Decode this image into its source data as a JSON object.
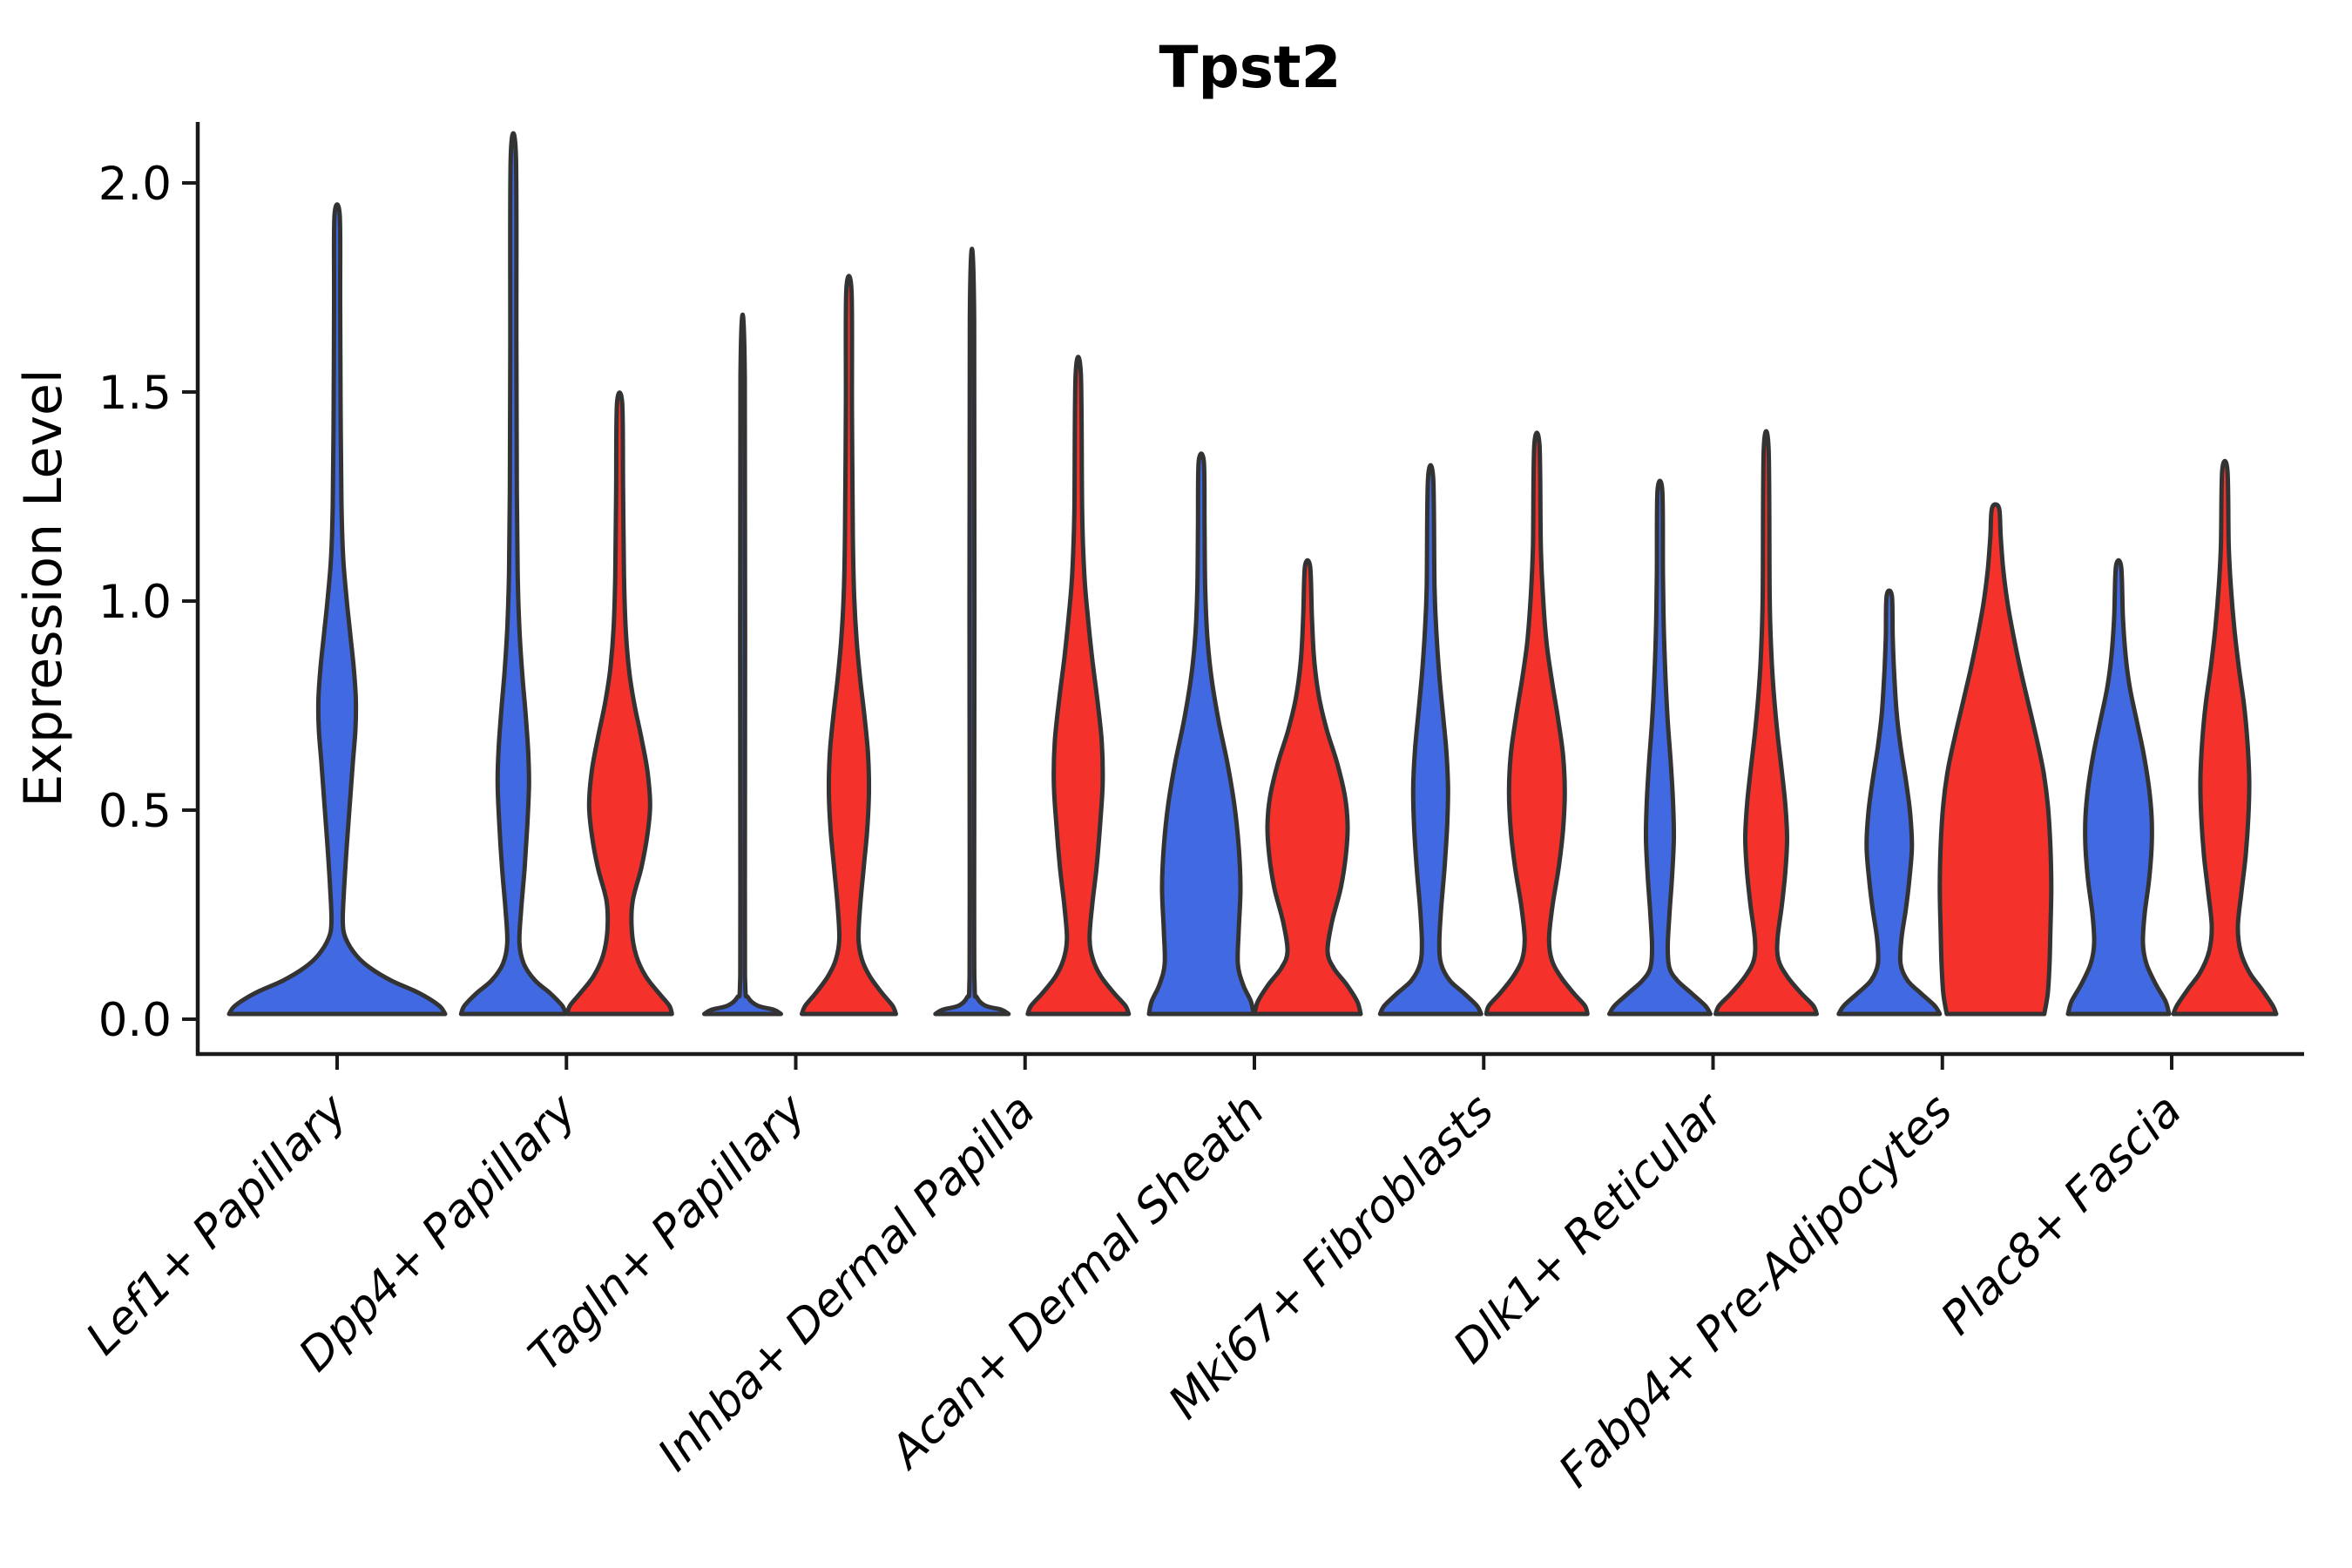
{
  "chart_data": {
    "type": "violin",
    "title": "Tpst2",
    "ylabel": "Expression Level",
    "xlabel": "",
    "grid": false,
    "legend": "none",
    "ylim": [
      -0.09,
      2.15
    ],
    "yticks": [
      {
        "label": "0.0",
        "value": 0.0
      },
      {
        "label": "0.5",
        "value": 0.5
      },
      {
        "label": "1.0",
        "value": 1.0
      },
      {
        "label": "1.5",
        "value": 1.5
      },
      {
        "label": "2.0",
        "value": 2.0
      }
    ],
    "categories": [
      "Lef1+ Papillary",
      "Dpp4+ Papillary",
      "Tagln+ Papillary",
      "Inhba+ Dermal Papilla",
      "Acan+ Dermal Sheath",
      "Mki67+ Fibroblasts",
      "Dlk1+ Reticular",
      "Fabp4+ Pre-Adipocytes",
      "Plac8+ Fascia"
    ],
    "colors": {
      "blue": "#4169E1",
      "red": "#F5312B",
      "outline": "#333333",
      "axis": "#1a1a1a",
      "text": "#000000"
    },
    "violins": [
      {
        "category": "Lef1+ Papillary",
        "series": "blue",
        "position": "center",
        "max_expression": 1.91,
        "profile": [
          [
            0,
            124
          ],
          [
            0.02,
            117
          ],
          [
            0.05,
            94
          ],
          [
            0.08,
            62
          ],
          [
            0.11,
            38
          ],
          [
            0.14,
            22
          ],
          [
            0.18,
            10
          ],
          [
            0.22,
            6.5
          ],
          [
            0.3,
            8
          ],
          [
            0.4,
            11
          ],
          [
            0.5,
            14.5
          ],
          [
            0.6,
            18
          ],
          [
            0.68,
            21
          ],
          [
            0.75,
            21.5
          ],
          [
            0.83,
            19
          ],
          [
            0.91,
            15
          ],
          [
            0.99,
            11
          ],
          [
            1.09,
            7
          ],
          [
            1.22,
            5
          ],
          [
            1.45,
            4
          ],
          [
            1.7,
            3.5
          ],
          [
            1.91,
            3
          ]
        ]
      },
      {
        "category": "Dpp4+ Papillary",
        "series": "blue",
        "position": "left",
        "max_expression": 2.05,
        "profile": [
          [
            0,
            60
          ],
          [
            0.02,
            56
          ],
          [
            0.05,
            42
          ],
          [
            0.08,
            25
          ],
          [
            0.12,
            12
          ],
          [
            0.17,
            7
          ],
          [
            0.25,
            9
          ],
          [
            0.35,
            13
          ],
          [
            0.45,
            16
          ],
          [
            0.55,
            18
          ],
          [
            0.63,
            17
          ],
          [
            0.72,
            14
          ],
          [
            0.82,
            10
          ],
          [
            0.92,
            7
          ],
          [
            1.05,
            5
          ],
          [
            1.25,
            4
          ],
          [
            1.6,
            3.5
          ],
          [
            2.05,
            3
          ]
        ]
      },
      {
        "category": "Dpp4+ Papillary",
        "series": "red",
        "position": "right",
        "max_expression": 1.46,
        "profile": [
          [
            0,
            60
          ],
          [
            0.02,
            57
          ],
          [
            0.05,
            45
          ],
          [
            0.09,
            30
          ],
          [
            0.14,
            19
          ],
          [
            0.2,
            14
          ],
          [
            0.27,
            15
          ],
          [
            0.35,
            25
          ],
          [
            0.43,
            32
          ],
          [
            0.5,
            35
          ],
          [
            0.58,
            32
          ],
          [
            0.66,
            25
          ],
          [
            0.74,
            17
          ],
          [
            0.82,
            11
          ],
          [
            0.92,
            7
          ],
          [
            1.05,
            5
          ],
          [
            1.25,
            4
          ],
          [
            1.46,
            3
          ]
        ]
      },
      {
        "category": "Tagln+ Papillary",
        "series": "blue",
        "position": "left",
        "max_expression": 1.52,
        "profile": [
          [
            0,
            44
          ],
          [
            0.01,
            36
          ],
          [
            0.02,
            17
          ],
          [
            0.04,
            6
          ],
          [
            0.07,
            3
          ],
          [
            0.3,
            2.6
          ],
          [
            1.52,
            2.5
          ]
        ]
      },
      {
        "category": "Tagln+ Papillary",
        "series": "red",
        "position": "right",
        "max_expression": 1.73,
        "profile": [
          [
            0,
            54
          ],
          [
            0.02,
            50
          ],
          [
            0.05,
            38
          ],
          [
            0.09,
            24
          ],
          [
            0.13,
            15
          ],
          [
            0.18,
            11
          ],
          [
            0.26,
            13
          ],
          [
            0.35,
            17
          ],
          [
            0.44,
            21
          ],
          [
            0.53,
            23
          ],
          [
            0.62,
            22
          ],
          [
            0.71,
            18
          ],
          [
            0.8,
            13
          ],
          [
            0.89,
            9
          ],
          [
            1.0,
            6
          ],
          [
            1.15,
            4.5
          ],
          [
            1.45,
            3.5
          ],
          [
            1.73,
            3
          ]
        ]
      },
      {
        "category": "Inhba+ Dermal Papilla",
        "series": "blue",
        "position": "left",
        "max_expression": 1.66,
        "profile": [
          [
            0,
            42
          ],
          [
            0.01,
            34
          ],
          [
            0.02,
            15
          ],
          [
            0.04,
            5.5
          ],
          [
            0.07,
            3
          ],
          [
            0.3,
            2.6
          ],
          [
            1.66,
            2.5
          ]
        ]
      },
      {
        "category": "Inhba+ Dermal Papilla",
        "series": "red",
        "position": "right",
        "max_expression": 1.53,
        "profile": [
          [
            0,
            58
          ],
          [
            0.02,
            54
          ],
          [
            0.05,
            41
          ],
          [
            0.09,
            26
          ],
          [
            0.13,
            17
          ],
          [
            0.18,
            13
          ],
          [
            0.26,
            16
          ],
          [
            0.35,
            21
          ],
          [
            0.45,
            25
          ],
          [
            0.55,
            28
          ],
          [
            0.65,
            27
          ],
          [
            0.75,
            22
          ],
          [
            0.85,
            16
          ],
          [
            0.95,
            11
          ],
          [
            1.05,
            7
          ],
          [
            1.2,
            4.5
          ],
          [
            1.53,
            3
          ]
        ]
      },
      {
        "category": "Acan+ Dermal Sheath",
        "series": "blue",
        "position": "left",
        "max_expression": 1.32,
        "profile": [
          [
            0,
            60
          ],
          [
            0.03,
            57
          ],
          [
            0.07,
            48
          ],
          [
            0.12,
            42
          ],
          [
            0.2,
            43
          ],
          [
            0.3,
            45
          ],
          [
            0.4,
            43
          ],
          [
            0.5,
            38
          ],
          [
            0.6,
            30
          ],
          [
            0.7,
            20
          ],
          [
            0.8,
            12
          ],
          [
            0.9,
            7
          ],
          [
            1.02,
            4.5
          ],
          [
            1.16,
            3.8
          ],
          [
            1.32,
            3
          ]
        ]
      },
      {
        "category": "Acan+ Dermal Sheath",
        "series": "red",
        "position": "right",
        "max_expression": 1.07,
        "profile": [
          [
            0,
            61
          ],
          [
            0.03,
            57
          ],
          [
            0.07,
            45
          ],
          [
            0.11,
            30
          ],
          [
            0.15,
            23
          ],
          [
            0.22,
            28
          ],
          [
            0.3,
            38
          ],
          [
            0.38,
            44
          ],
          [
            0.45,
            46
          ],
          [
            0.52,
            43
          ],
          [
            0.6,
            34
          ],
          [
            0.68,
            22
          ],
          [
            0.76,
            13
          ],
          [
            0.85,
            7.5
          ],
          [
            0.95,
            5
          ],
          [
            1.07,
            3
          ]
        ]
      },
      {
        "category": "Mki67+ Fibroblasts",
        "series": "blue",
        "position": "left",
        "max_expression": 1.28,
        "profile": [
          [
            0,
            58
          ],
          [
            0.02,
            53
          ],
          [
            0.05,
            38
          ],
          [
            0.08,
            22
          ],
          [
            0.12,
            12
          ],
          [
            0.17,
            10
          ],
          [
            0.25,
            12
          ],
          [
            0.35,
            16
          ],
          [
            0.45,
            19
          ],
          [
            0.54,
            20
          ],
          [
            0.63,
            18
          ],
          [
            0.72,
            14
          ],
          [
            0.81,
            10
          ],
          [
            0.9,
            7
          ],
          [
            1.02,
            4.5
          ],
          [
            1.28,
            3
          ]
        ]
      },
      {
        "category": "Mki67+ Fibroblasts",
        "series": "red",
        "position": "right",
        "max_expression": 1.36,
        "profile": [
          [
            0,
            58
          ],
          [
            0.02,
            55
          ],
          [
            0.05,
            42
          ],
          [
            0.09,
            27
          ],
          [
            0.13,
            17
          ],
          [
            0.18,
            14
          ],
          [
            0.26,
            18
          ],
          [
            0.35,
            25
          ],
          [
            0.44,
            30
          ],
          [
            0.53,
            32
          ],
          [
            0.62,
            30
          ],
          [
            0.71,
            24
          ],
          [
            0.8,
            17
          ],
          [
            0.89,
            11
          ],
          [
            1.0,
            7
          ],
          [
            1.12,
            4.5
          ],
          [
            1.36,
            3
          ]
        ]
      },
      {
        "category": "Dlk1+ Reticular",
        "series": "blue",
        "position": "left",
        "max_expression": 1.25,
        "profile": [
          [
            0,
            58
          ],
          [
            0.02,
            52
          ],
          [
            0.05,
            36
          ],
          [
            0.08,
            20
          ],
          [
            0.11,
            11
          ],
          [
            0.16,
            9
          ],
          [
            0.24,
            11
          ],
          [
            0.33,
            14
          ],
          [
            0.42,
            16
          ],
          [
            0.51,
            15
          ],
          [
            0.6,
            12.5
          ],
          [
            0.7,
            9
          ],
          [
            0.8,
            6.5
          ],
          [
            0.92,
            4.5
          ],
          [
            1.05,
            3.5
          ],
          [
            1.25,
            2.8
          ]
        ]
      },
      {
        "category": "Dlk1+ Reticular",
        "series": "red",
        "position": "right",
        "max_expression": 1.35,
        "profile": [
          [
            0,
            58
          ],
          [
            0.02,
            54
          ],
          [
            0.05,
            40
          ],
          [
            0.09,
            24
          ],
          [
            0.13,
            14
          ],
          [
            0.18,
            13
          ],
          [
            0.26,
            18
          ],
          [
            0.34,
            22
          ],
          [
            0.42,
            24
          ],
          [
            0.5,
            22
          ],
          [
            0.58,
            18
          ],
          [
            0.67,
            13
          ],
          [
            0.76,
            9
          ],
          [
            0.86,
            6
          ],
          [
            1.0,
            4
          ],
          [
            1.35,
            2.8
          ]
        ]
      },
      {
        "category": "Fabp4+ Pre-Adipocytes",
        "series": "blue",
        "position": "left",
        "max_expression": 1.0,
        "profile": [
          [
            0,
            58
          ],
          [
            0.02,
            52
          ],
          [
            0.05,
            36
          ],
          [
            0.08,
            21
          ],
          [
            0.12,
            13
          ],
          [
            0.18,
            14
          ],
          [
            0.25,
            19
          ],
          [
            0.32,
            23
          ],
          [
            0.4,
            26
          ],
          [
            0.48,
            24
          ],
          [
            0.56,
            19
          ],
          [
            0.64,
            13
          ],
          [
            0.72,
            8.5
          ],
          [
            0.82,
            5.5
          ],
          [
            0.9,
            4
          ],
          [
            1.0,
            3
          ]
        ]
      },
      {
        "category": "Fabp4+ Pre-Adipocytes",
        "series": "red",
        "position": "right",
        "max_expression": 1.21,
        "profile": [
          [
            0,
            56
          ],
          [
            0.05,
            60
          ],
          [
            0.12,
            62
          ],
          [
            0.2,
            63
          ],
          [
            0.3,
            64
          ],
          [
            0.4,
            63
          ],
          [
            0.5,
            60
          ],
          [
            0.58,
            55
          ],
          [
            0.66,
            47
          ],
          [
            0.74,
            38
          ],
          [
            0.82,
            29
          ],
          [
            0.9,
            21
          ],
          [
            0.98,
            14
          ],
          [
            1.06,
            9
          ],
          [
            1.14,
            6
          ],
          [
            1.21,
            4
          ]
        ]
      },
      {
        "category": "Plac8+ Fascia",
        "series": "blue",
        "position": "left",
        "max_expression": 1.07,
        "profile": [
          [
            0,
            58
          ],
          [
            0.03,
            54
          ],
          [
            0.07,
            43
          ],
          [
            0.12,
            32
          ],
          [
            0.17,
            28
          ],
          [
            0.24,
            30
          ],
          [
            0.32,
            35
          ],
          [
            0.4,
            38
          ],
          [
            0.47,
            38
          ],
          [
            0.54,
            35
          ],
          [
            0.62,
            29
          ],
          [
            0.7,
            21
          ],
          [
            0.78,
            13
          ],
          [
            0.86,
            8
          ],
          [
            0.95,
            5
          ],
          [
            1.07,
            3
          ]
        ]
      },
      {
        "category": "Plac8+ Fascia",
        "series": "red",
        "position": "right",
        "max_expression": 1.3,
        "profile": [
          [
            0,
            59
          ],
          [
            0.02,
            55
          ],
          [
            0.06,
            42
          ],
          [
            0.1,
            28
          ],
          [
            0.15,
            18
          ],
          [
            0.21,
            15
          ],
          [
            0.29,
            19
          ],
          [
            0.38,
            24
          ],
          [
            0.47,
            27
          ],
          [
            0.56,
            28
          ],
          [
            0.65,
            26
          ],
          [
            0.74,
            22
          ],
          [
            0.83,
            16
          ],
          [
            0.92,
            11
          ],
          [
            1.02,
            7
          ],
          [
            1.12,
            4.5
          ],
          [
            1.3,
            3
          ]
        ]
      }
    ]
  }
}
